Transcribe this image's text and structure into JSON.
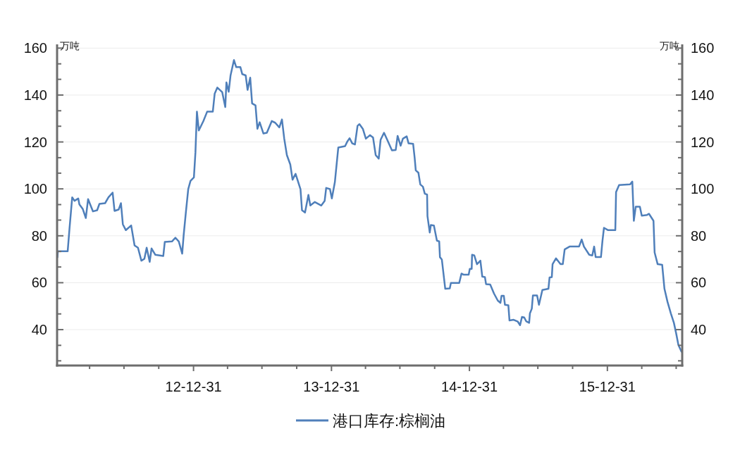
{
  "chart_data": {
    "type": "line",
    "ylabel": "万吨",
    "y2label": "万吨",
    "xlim": [
      "2012-01-05",
      "2016-07-16"
    ],
    "xticks": [
      {
        "value": "2012-03-31",
        "label": null
      },
      {
        "value": "2012-06-30",
        "label": null
      },
      {
        "value": "2012-09-30",
        "label": null
      },
      {
        "value": "2012-12-31",
        "label": "12-12-31"
      },
      {
        "value": "2013-03-31",
        "label": null
      },
      {
        "value": "2013-06-30",
        "label": null
      },
      {
        "value": "2013-09-30",
        "label": null
      },
      {
        "value": "2013-12-31",
        "label": "13-12-31"
      },
      {
        "value": "2014-03-31",
        "label": null
      },
      {
        "value": "2014-06-30",
        "label": null
      },
      {
        "value": "2014-09-30",
        "label": null
      },
      {
        "value": "2014-12-31",
        "label": "14-12-31"
      },
      {
        "value": "2015-03-31",
        "label": null
      },
      {
        "value": "2015-06-30",
        "label": null
      },
      {
        "value": "2015-09-30",
        "label": null
      },
      {
        "value": "2015-12-31",
        "label": "15-12-31"
      },
      {
        "value": "2016-03-31",
        "label": null
      },
      {
        "value": "2016-06-30",
        "label": null
      }
    ],
    "ylim": [
      24.7,
      161
    ],
    "yticks": [
      {
        "value": 26.7,
        "label": null
      },
      {
        "value": 33.3,
        "label": null
      },
      40,
      {
        "value": 46.7,
        "label": null
      },
      {
        "value": 53.3,
        "label": null
      },
      60,
      {
        "value": 66.7,
        "label": null
      },
      {
        "value": 73.3,
        "label": null
      },
      80,
      {
        "value": 86.7,
        "label": null
      },
      {
        "value": 93.3,
        "label": null
      },
      100,
      {
        "value": 106.7,
        "label": null
      },
      {
        "value": 113.3,
        "label": null
      },
      120,
      {
        "value": 126.7,
        "label": null
      },
      {
        "value": 133.3,
        "label": null
      },
      140,
      {
        "value": 146.7,
        "label": null
      },
      {
        "value": 153.3,
        "label": null
      },
      160
    ],
    "y2lim": [
      24.7,
      161
    ],
    "y2ticks": [
      {
        "value": 26.7,
        "label": null
      },
      {
        "value": 33.3,
        "label": null
      },
      40,
      {
        "value": 46.7,
        "label": null
      },
      {
        "value": 53.3,
        "label": null
      },
      60,
      {
        "value": 66.7,
        "label": null
      },
      {
        "value": 73.3,
        "label": null
      },
      80,
      {
        "value": 86.7,
        "label": null
      },
      {
        "value": 93.3,
        "label": null
      },
      100,
      {
        "value": 106.7,
        "label": null
      },
      {
        "value": 113.3,
        "label": null
      },
      120,
      {
        "value": 126.7,
        "label": null
      },
      {
        "value": 133.3,
        "label": null
      },
      140,
      {
        "value": 146.7,
        "label": null
      },
      {
        "value": 153.3,
        "label": null
      },
      160
    ],
    "grid": "y",
    "legend": "bottom",
    "line_style": "solid",
    "series": [
      {
        "name": "港口库存:棕榈油",
        "color": "#4f7fba",
        "x": [
          "2012-01-06",
          "2012-01-07",
          "2012-02-02",
          "2012-02-07",
          "2012-02-14",
          "2012-02-20",
          "2012-03-01",
          "2012-03-04",
          "2012-03-13",
          "2012-03-21",
          "2012-03-27",
          "2012-04-09",
          "2012-04-20",
          "2012-04-26",
          "2012-05-11",
          "2012-05-20",
          "2012-05-31",
          "2012-06-05",
          "2012-06-16",
          "2012-06-22",
          "2012-06-27",
          "2012-07-05",
          "2012-07-19",
          "2012-07-28",
          "2012-08-06",
          "2012-08-15",
          "2012-08-23",
          "2012-08-29",
          "2012-09-06",
          "2012-09-11",
          "2012-09-21",
          "2012-10-12",
          "2012-10-16",
          "2012-11-04",
          "2012-11-13",
          "2012-11-22",
          "2012-12-01",
          "2012-12-05",
          "2012-12-11",
          "2012-12-17",
          "2012-12-23",
          "2013-01-01",
          "2013-01-05",
          "2013-01-09",
          "2013-01-14",
          "2013-01-26",
          "2013-02-05",
          "2013-02-20",
          "2013-02-25",
          "2013-03-04",
          "2013-03-17",
          "2013-03-25",
          "2013-03-28",
          "2013-04-03",
          "2013-04-08",
          "2013-04-17",
          "2013-04-23",
          "2013-05-04",
          "2013-05-09",
          "2013-05-18",
          "2013-05-23",
          "2013-05-30",
          "2013-06-04",
          "2013-06-13",
          "2013-06-18",
          "2013-06-24",
          "2013-07-04",
          "2013-07-13",
          "2013-07-26",
          "2013-08-04",
          "2013-08-15",
          "2013-08-22",
          "2013-08-28",
          "2013-09-04",
          "2013-09-13",
          "2013-09-19",
          "2013-09-27",
          "2013-10-10",
          "2013-10-14",
          "2013-10-22",
          "2013-10-31",
          "2013-11-05",
          "2013-11-17",
          "2013-12-04",
          "2013-12-13",
          "2013-12-17",
          "2013-12-27",
          "2014-01-01",
          "2014-01-09",
          "2014-01-18",
          "2014-02-05",
          "2014-02-11",
          "2014-02-17",
          "2014-02-24",
          "2014-03-03",
          "2014-03-10",
          "2014-03-15",
          "2014-03-24",
          "2014-04-01",
          "2014-04-12",
          "2014-04-20",
          "2014-04-27",
          "2014-05-05",
          "2014-05-10",
          "2014-05-19",
          "2014-05-29",
          "2014-06-09",
          "2014-06-19",
          "2014-06-24",
          "2014-07-02",
          "2014-07-08",
          "2014-07-18",
          "2014-07-23",
          "2014-08-04",
          "2014-08-08",
          "2014-08-11",
          "2014-08-18",
          "2014-08-23",
          "2014-08-30",
          "2014-09-04",
          "2014-09-10",
          "2014-09-11",
          "2014-09-17",
          "2014-09-20",
          "2014-09-28",
          "2014-10-06",
          "2014-10-12",
          "2014-10-14",
          "2014-10-19",
          "2014-10-28",
          "2014-11-09",
          "2014-11-12",
          "2014-12-04",
          "2014-12-10",
          "2014-12-16",
          "2014-12-29",
          "2015-01-01",
          "2015-01-06",
          "2015-01-07",
          "2015-01-13",
          "2015-01-20",
          "2015-01-29",
          "2015-02-03",
          "2015-02-10",
          "2015-02-13",
          "2015-02-24",
          "2015-03-06",
          "2015-03-16",
          "2015-03-23",
          "2015-03-26",
          "2015-04-01",
          "2015-04-04",
          "2015-04-13",
          "2015-04-16",
          "2015-04-27",
          "2015-05-08",
          "2015-05-14",
          "2015-05-19",
          "2015-05-25",
          "2015-05-30",
          "2015-06-07",
          "2015-06-09",
          "2015-06-14",
          "2015-06-17",
          "2015-06-28",
          "2015-07-03",
          "2015-07-12",
          "2015-07-28",
          "2015-07-31",
          "2015-08-06",
          "2015-08-08",
          "2015-08-17",
          "2015-08-29",
          "2015-09-04",
          "2015-09-09",
          "2015-09-22",
          "2015-10-17",
          "2015-10-24",
          "2015-10-30",
          "2015-11-13",
          "2015-11-21",
          "2015-11-26",
          "2015-11-30",
          "2015-12-14",
          "2015-12-18",
          "2015-12-22",
          "2016-01-02",
          "2016-01-21",
          "2016-01-23",
          "2016-01-31",
          "2016-02-29",
          "2016-03-06",
          "2016-03-10",
          "2016-03-15",
          "2016-03-26",
          "2016-03-31",
          "2016-04-14",
          "2016-04-19",
          "2016-05-01",
          "2016-05-04",
          "2016-05-12",
          "2016-05-24",
          "2016-05-30",
          "2016-06-07",
          "2016-06-16",
          "2016-06-24",
          "2016-06-30",
          "2016-07-06",
          "2016-07-14"
        ],
        "values": [
          70.9,
          73.4,
          73.4,
          83.4,
          96.4,
          94.9,
          95.9,
          93.4,
          91.4,
          87.6,
          95.6,
          90.4,
          90.9,
          93.6,
          93.9,
          96.4,
          98.4,
          90.6,
          91.2,
          93.9,
          84.9,
          82.4,
          84.4,
          75.9,
          74.9,
          69.4,
          70.2,
          74.9,
          68.9,
          74.6,
          71.9,
          71.4,
          77.4,
          77.6,
          79.2,
          77.6,
          72.4,
          80.4,
          90.4,
          99.9,
          103.4,
          104.9,
          115.4,
          132.9,
          124.9,
          128.9,
          132.9,
          132.9,
          140.6,
          143.2,
          141.2,
          134.9,
          145.4,
          141.4,
          148.4,
          154.9,
          151.9,
          151.9,
          148.9,
          148.4,
          142.2,
          147.4,
          136.4,
          135.6,
          125.6,
          128.4,
          123.6,
          123.9,
          128.9,
          128.2,
          126.2,
          129.6,
          121.4,
          114.4,
          110.4,
          103.9,
          106.4,
          99.9,
          90.9,
          89.9,
          97.4,
          92.9,
          94.4,
          92.9,
          94.9,
          100.4,
          99.9,
          95.9,
          102.9,
          117.6,
          118.2,
          120.2,
          121.6,
          119.4,
          118.9,
          126.9,
          127.6,
          125.6,
          121.4,
          122.9,
          121.9,
          114.4,
          112.9,
          120.9,
          123.9,
          120.4,
          116.4,
          116.6,
          122.6,
          118.4,
          121.4,
          122.4,
          119.4,
          119.2,
          113.4,
          107.9,
          106.9,
          101.9,
          100.9,
          97.9,
          97.6,
          88.4,
          81.4,
          84.6,
          84.4,
          77.9,
          77.6,
          70.9,
          69.9,
          57.4,
          57.6,
          59.9,
          59.9,
          63.9,
          63.4,
          63.4,
          65.9,
          65.9,
          71.9,
          71.6,
          67.9,
          69.4,
          62.6,
          62.4,
          59.4,
          59.2,
          55.4,
          52.4,
          51.4,
          54.4,
          54.4,
          50.6,
          50.4,
          43.9,
          44.2,
          43.4,
          41.9,
          45.4,
          45.2,
          43.6,
          42.9,
          46.9,
          48.9,
          54.6,
          54.6,
          50.6,
          56.9,
          57.4,
          62.2,
          62.4,
          67.9,
          70.4,
          67.9,
          67.9,
          74.2,
          75.4,
          75.4,
          78.4,
          75.4,
          71.9,
          71.6,
          75.4,
          70.9,
          70.9,
          77.9,
          83.4,
          82.4,
          82.4,
          98.6,
          101.6,
          101.9,
          103.1,
          86.4,
          92.4,
          92.4,
          88.6,
          88.9,
          89.4,
          86.4,
          72.9,
          67.9,
          67.6,
          57.4,
          51.9,
          46.9,
          42.9,
          38.4,
          33.4,
          30.6
        ]
      }
    ]
  }
}
